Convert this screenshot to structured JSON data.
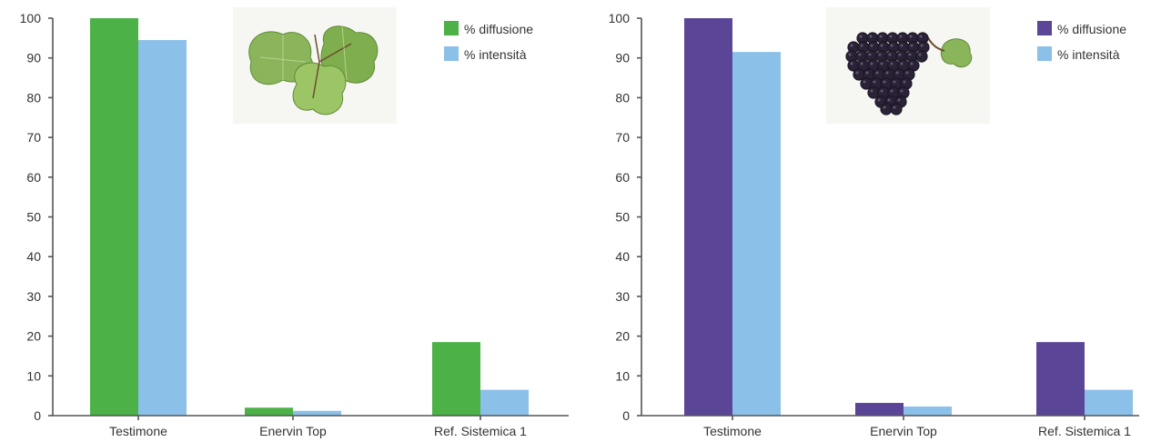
{
  "chart_data": [
    {
      "type": "bar",
      "title": "",
      "xlabel": "",
      "ylabel": "",
      "ylim": [
        0,
        100
      ],
      "yticks": [
        0,
        10,
        20,
        30,
        40,
        50,
        60,
        70,
        80,
        90,
        100
      ],
      "grid": false,
      "legend_position": "top-right",
      "image": "vine-leaf",
      "categories": [
        "Testimone",
        "Enervin Top",
        "Ref. Sistemica 1"
      ],
      "series": [
        {
          "name": "% diffusione",
          "color": "#4cb147",
          "values": [
            100,
            2,
            18.5
          ]
        },
        {
          "name": "% intensità",
          "color": "#8bc0e8",
          "values": [
            94.5,
            1.2,
            6.5
          ]
        }
      ]
    },
    {
      "type": "bar",
      "title": "",
      "xlabel": "",
      "ylabel": "",
      "ylim": [
        0,
        100
      ],
      "yticks": [
        0,
        10,
        20,
        30,
        40,
        50,
        60,
        70,
        80,
        90,
        100
      ],
      "grid": false,
      "legend_position": "top-right",
      "image": "grape-bunch",
      "categories": [
        "Testimone",
        "Enervin Top",
        "Ref. Sistemica 1"
      ],
      "series": [
        {
          "name": "% diffusione",
          "color": "#5b4597",
          "values": [
            100,
            3.2,
            18.5
          ]
        },
        {
          "name": "% intensità",
          "color": "#8bc0e8",
          "values": [
            91.5,
            2.3,
            6.5
          ]
        }
      ]
    }
  ]
}
